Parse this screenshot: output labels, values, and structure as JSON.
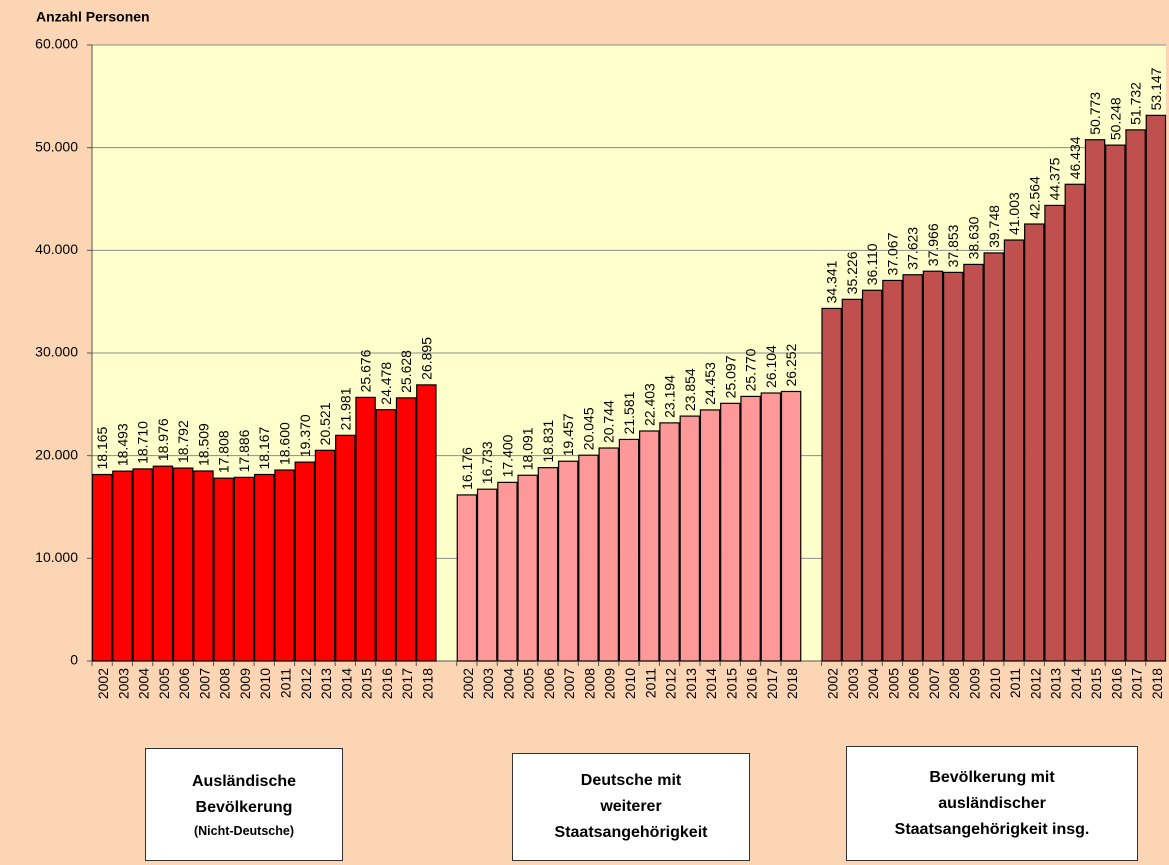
{
  "chart_data": {
    "type": "bar",
    "y_label": "Anzahl Personen",
    "categories": [
      "2002",
      "2003",
      "2004",
      "2005",
      "2006",
      "2007",
      "2008",
      "2009",
      "2010",
      "2011",
      "2012",
      "2013",
      "2014",
      "2015",
      "2016",
      "2017",
      "2018"
    ],
    "ylim": [
      0,
      60000
    ],
    "yticks": [
      0,
      {
        "value": 10000,
        "label": "10.000"
      },
      {
        "value": 20000,
        "label": "20.000"
      },
      {
        "value": 30000,
        "label": "30.000"
      },
      {
        "value": 40000,
        "label": "40.000"
      },
      {
        "value": 50000,
        "label": "50.000"
      },
      {
        "value": 60000,
        "label": "60.000"
      }
    ],
    "grid": true,
    "series": [
      {
        "name": "Ausländische\nBevölkerung",
        "name_note": "(Nicht-Deutsche)",
        "color": "#ff0000",
        "values": [
          18165,
          18493,
          18710,
          18976,
          18792,
          18509,
          17808,
          17886,
          18167,
          18600,
          19370,
          20521,
          21981,
          25676,
          24478,
          25628,
          26895
        ],
        "value_labels": [
          "18.165",
          "18.493",
          "18.710",
          "18.976",
          "18.792",
          "18.509",
          "17.808",
          "17.886",
          "18.167",
          "18.600",
          "19.370",
          "20.521",
          "21.981",
          "25.676",
          "24.478",
          "25.628",
          "26.895"
        ]
      },
      {
        "name": "Deutsche mit\nweiterer\nStaatsangehörigkeit",
        "color": "#ff9999",
        "values": [
          16176,
          16733,
          17400,
          18091,
          18831,
          19457,
          20045,
          20744,
          21581,
          22403,
          23194,
          23854,
          24453,
          25097,
          25770,
          26104,
          26252
        ],
        "value_labels": [
          "16.176",
          "16.733",
          "17.400",
          "18.091",
          "18.831",
          "19.457",
          "20.045",
          "20.744",
          "21.581",
          "22.403",
          "23.194",
          "23.854",
          "24.453",
          "25.097",
          "25.770",
          "26.104",
          "26.252"
        ]
      },
      {
        "name": "Bevölkerung mit\nausländischer\nStaatsangehörigkeit insg.",
        "color": "#c0504d",
        "values": [
          34341,
          35226,
          36110,
          37067,
          37623,
          37966,
          37853,
          38630,
          39748,
          41003,
          42564,
          44375,
          46434,
          50773,
          50248,
          51732,
          53147
        ],
        "value_labels": [
          "34.341",
          "35.226",
          "36.110",
          "37.067",
          "37.623",
          "37.966",
          "37.853",
          "38.630",
          "39.748",
          "41.003",
          "42.564",
          "44.375",
          "46.434",
          "50.773",
          "50.248",
          "51.732",
          "53.147"
        ]
      }
    ]
  }
}
